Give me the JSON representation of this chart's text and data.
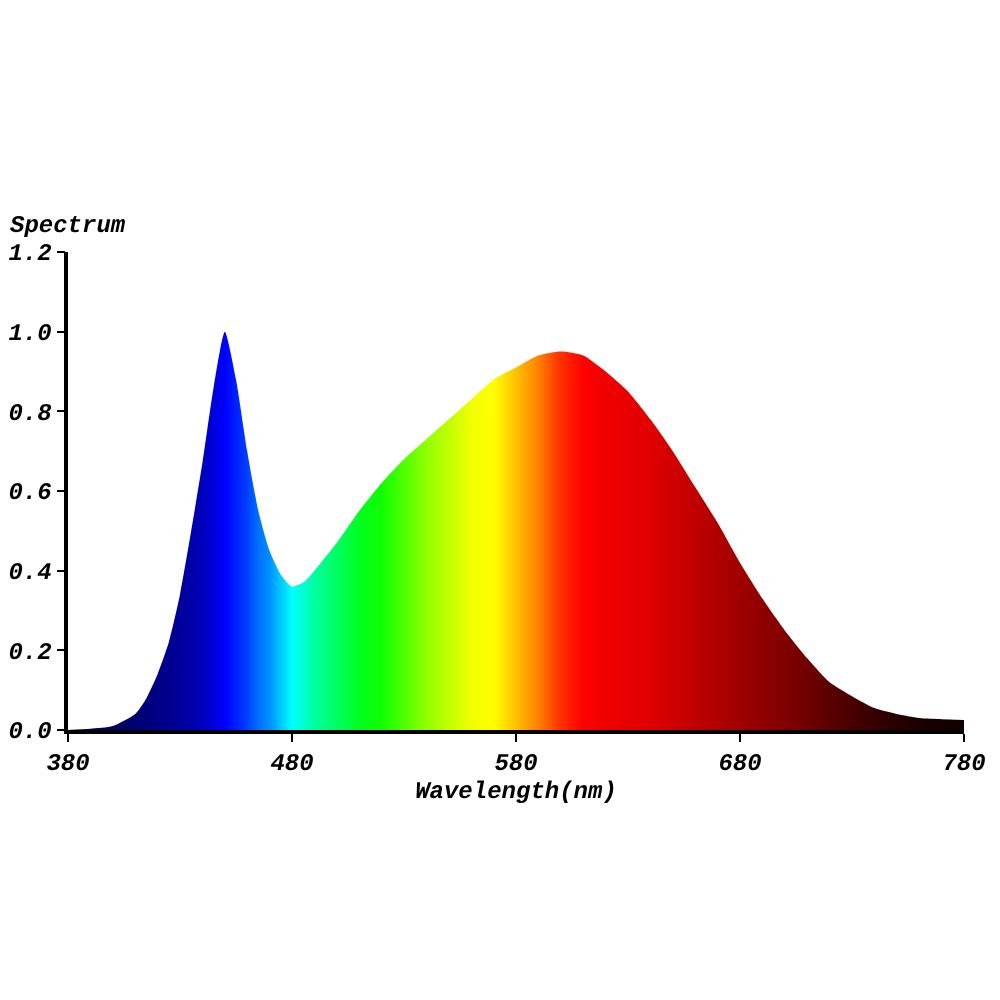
{
  "chart_data": {
    "type": "area",
    "ylabel": "Spectrum",
    "xlabel": "Wavelength(nm)",
    "x": [
      380,
      390,
      400,
      410,
      415,
      420,
      425,
      430,
      435,
      440,
      445,
      450,
      455,
      460,
      465,
      470,
      475,
      480,
      485,
      490,
      500,
      510,
      520,
      530,
      540,
      550,
      560,
      570,
      580,
      590,
      600,
      610,
      620,
      630,
      640,
      650,
      660,
      670,
      680,
      690,
      700,
      710,
      720,
      730,
      740,
      750,
      760,
      770,
      780
    ],
    "values": [
      0.0,
      0.003,
      0.01,
      0.04,
      0.08,
      0.14,
      0.22,
      0.34,
      0.5,
      0.67,
      0.86,
      1.0,
      0.88,
      0.7,
      0.55,
      0.45,
      0.39,
      0.36,
      0.37,
      0.4,
      0.47,
      0.55,
      0.62,
      0.68,
      0.73,
      0.78,
      0.83,
      0.88,
      0.91,
      0.94,
      0.95,
      0.94,
      0.9,
      0.85,
      0.78,
      0.7,
      0.61,
      0.52,
      0.42,
      0.33,
      0.25,
      0.18,
      0.12,
      0.085,
      0.055,
      0.04,
      0.03,
      0.027,
      0.025
    ],
    "colors": [
      "#000040",
      "#000050",
      "#000060",
      "#000070",
      "#00007a",
      "#000085",
      "#00008f",
      "#000099",
      "#0000aa",
      "#0000bb",
      "#0000dd",
      "#0000ff",
      "#0020ff",
      "#0040ff",
      "#0070ff",
      "#0090ff",
      "#00c8ff",
      "#00ffff",
      "#00ffd0",
      "#00ffa0",
      "#00ff60",
      "#00ff20",
      "#10ff00",
      "#50ff00",
      "#90ff00",
      "#c0ff00",
      "#f0ff00",
      "#ffff00",
      "#ffc000",
      "#ff8000",
      "#ff3000",
      "#ff0000",
      "#f00000",
      "#e80000",
      "#e00000",
      "#d00000",
      "#c00000",
      "#b00000",
      "#a00000",
      "#900000",
      "#800000",
      "#700000",
      "#5a0000",
      "#480000",
      "#380000",
      "#280000",
      "#1e0000",
      "#160000",
      "#100000"
    ],
    "xlim": [
      380,
      780
    ],
    "ylim": [
      0,
      1.2
    ],
    "xticks": [
      380,
      480,
      580,
      680,
      780
    ],
    "yticks": [
      {
        "value": 0,
        "label": "0.0"
      },
      {
        "value": 0.2,
        "label": "0.2"
      },
      {
        "value": 0.4,
        "label": "0.4"
      },
      {
        "value": 0.6,
        "label": "0.6"
      },
      {
        "value": 0.8,
        "label": "0.8"
      },
      {
        "value": 1.0,
        "label": "1.0"
      },
      {
        "value": 1.2,
        "label": "1.2"
      }
    ]
  }
}
